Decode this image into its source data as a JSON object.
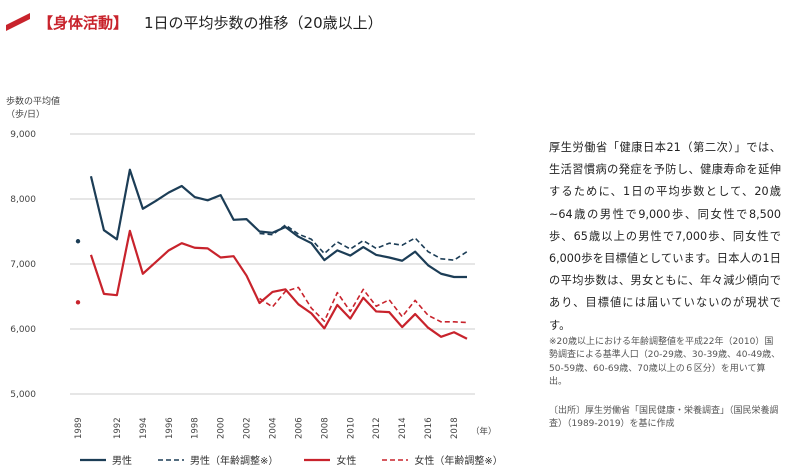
{
  "header": {
    "tag": "【身体活動】",
    "title": "1日の平均歩数の推移（20歳以上）"
  },
  "description": "厚生労働省「健康日本21（第二次）」では、生活習慣病の発症を予防し、健康寿命を延伸するために、1日の平均歩数として、20歳~64歳の男性で9,000歩、同女性で8,500歩、65歳以上の男性で7,000歩、同女性で6,000歩を目標値としています。日本人の1日の平均歩数は、男女ともに、年々減少傾向であり、目標値には届いていないのが現状です。",
  "note": "※20歳以上における年齢調整値を平成22年（2010）国勢調査による基準人口（20-29歳、30-39歳、40-49歳、50-59歳、60-69歳、70歳以上の６区分）を用いて算出。",
  "source": "〔出所〕厚生労働省「国民健康・栄養調査」（国民栄養調査）（1989-2019）を基に作成",
  "colors": {
    "male": "#1c3d56",
    "female": "#c8232c",
    "grid": "#cccccc",
    "accent": "#c8232c"
  },
  "chart_data": {
    "type": "line",
    "ylabel": "歩数の平均値（歩/日）",
    "xlabel": "（年）",
    "ylim": [
      5000,
      9000
    ],
    "yticks": [
      5000,
      6000,
      7000,
      8000,
      9000
    ],
    "ytick_labels": [
      "5,000",
      "6,000",
      "7,000",
      "8,000",
      "9,000"
    ],
    "xlim": [
      1989,
      2019
    ],
    "xticks": [
      1989,
      1992,
      1994,
      1996,
      1998,
      2000,
      2002,
      2004,
      2006,
      2008,
      2010,
      2012,
      2014,
      2016,
      2018
    ],
    "grid": true,
    "legend_position": "bottom",
    "series": [
      {
        "name": "男性",
        "style": "solid",
        "color": "#1c3d56",
        "points": [
          [
            1989,
            7350
          ]
        ],
        "segment": {
          "x": [
            1990,
            1991,
            1992,
            1993,
            1994,
            1995,
            1996,
            1997,
            1998,
            1999,
            2000,
            2001,
            2002,
            2003,
            2004,
            2005,
            2006,
            2007,
            2008,
            2009,
            2010,
            2011,
            2012,
            2013,
            2014,
            2015,
            2016,
            2017,
            2018,
            2019
          ],
          "y": [
            8350,
            7520,
            7380,
            8450,
            7850,
            7970,
            8100,
            8200,
            8030,
            7980,
            8060,
            7680,
            7690,
            7500,
            7480,
            7570,
            7420,
            7320,
            7060,
            7210,
            7130,
            7260,
            7140,
            7100,
            7050,
            7190,
            6980,
            6850,
            6800,
            6800
          ]
        }
      },
      {
        "name": "男性（年齢調整※）",
        "style": "dashed",
        "color": "#1c3d56",
        "segment": {
          "x": [
            2003,
            2004,
            2005,
            2006,
            2007,
            2008,
            2009,
            2010,
            2011,
            2012,
            2013,
            2014,
            2015,
            2016,
            2017,
            2018,
            2019
          ],
          "y": [
            7470,
            7450,
            7600,
            7460,
            7380,
            7160,
            7340,
            7230,
            7360,
            7240,
            7320,
            7290,
            7400,
            7190,
            7080,
            7060,
            7190
          ]
        }
      },
      {
        "name": "女性",
        "style": "solid",
        "color": "#c8232c",
        "points": [
          [
            1989,
            6410
          ]
        ],
        "segment": {
          "x": [
            1990,
            1991,
            1992,
            1993,
            1994,
            1995,
            1996,
            1997,
            1998,
            1999,
            2000,
            2001,
            2002,
            2003,
            2004,
            2005,
            2006,
            2007,
            2008,
            2009,
            2010,
            2011,
            2012,
            2013,
            2014,
            2015,
            2016,
            2017,
            2018,
            2019
          ],
          "y": [
            7140,
            6540,
            6520,
            7510,
            6850,
            7030,
            7210,
            7320,
            7250,
            7240,
            7100,
            7120,
            6820,
            6400,
            6570,
            6610,
            6380,
            6240,
            6010,
            6370,
            6160,
            6480,
            6270,
            6260,
            6030,
            6230,
            6020,
            5880,
            5950,
            5850
          ]
        }
      },
      {
        "name": "女性（年齢調整※）",
        "style": "dashed",
        "color": "#c8232c",
        "segment": {
          "x": [
            2003,
            2004,
            2005,
            2006,
            2007,
            2008,
            2009,
            2010,
            2011,
            2012,
            2013,
            2014,
            2015,
            2016,
            2017,
            2018,
            2019
          ],
          "y": [
            6470,
            6340,
            6580,
            6640,
            6320,
            6120,
            6560,
            6270,
            6610,
            6350,
            6450,
            6190,
            6440,
            6210,
            6110,
            6110,
            6100
          ]
        }
      }
    ]
  }
}
